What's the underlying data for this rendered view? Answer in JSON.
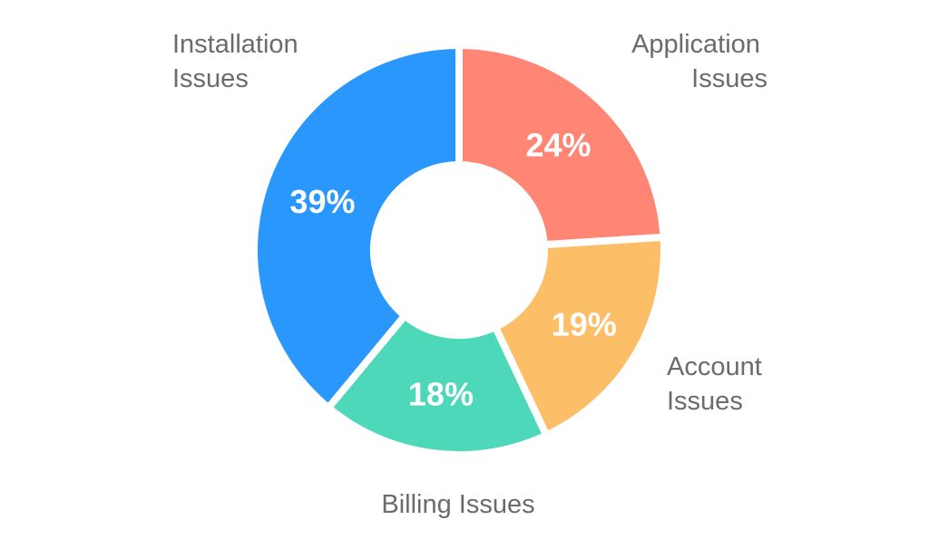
{
  "chart_data": {
    "type": "pie",
    "variant": "donut",
    "title": "",
    "categories": [
      "Application Issues",
      "Account Issues",
      "Billing Issues",
      "Installation Issues"
    ],
    "values": [
      24,
      19,
      18,
      39
    ],
    "value_labels": [
      "24%",
      "19%",
      "18%",
      "39%"
    ],
    "colors": [
      "#FF8674",
      "#FDBE68",
      "#4ED8BA",
      "#2997FC"
    ],
    "start": "12 o'clock",
    "direction": "clockwise",
    "legend": "none",
    "grid": false
  }
}
